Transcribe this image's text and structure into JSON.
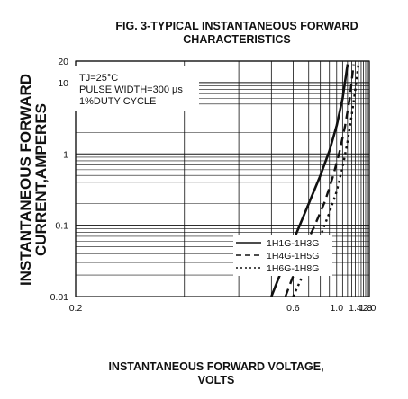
{
  "chart_data": {
    "type": "line",
    "title_lines": [
      "FIG. 3-TYPICAL INSTANTANEOUS FORWARD",
      "CHARACTERISTICS"
    ],
    "xlabel_lines": [
      "INSTANTANEOUS FORWARD VOLTAGE,",
      "VOLTS"
    ],
    "ylabel_lines": [
      "INSTANTANEOUS FORWARD",
      "CURRENT,AMPERES"
    ],
    "x_scale": "reciprocal",
    "y_scale": "log",
    "xlim": [
      0.2,
      2.0
    ],
    "ylim": [
      0.01,
      20
    ],
    "x_ticks": [
      0.2,
      0.6,
      1.0,
      1.4,
      1.8,
      2.0
    ],
    "x_tick_labels": [
      "0.2",
      "0.6",
      "1.0",
      "1.4",
      "1.8",
      "2.0"
    ],
    "y_ticks": [
      0.01,
      0.1,
      1,
      10,
      20
    ],
    "y_tick_labels": [
      "0.01",
      "0.1",
      "1",
      "10",
      "20"
    ],
    "grid": true,
    "annotations": [
      "TJ=25°C",
      "PULSE WIDTH=300 µs",
      "1%DUTY CYCLE"
    ],
    "legend_position": "bottom-right",
    "series": [
      {
        "name": "1H1G-1H3G",
        "style": "solid",
        "x": [
          0.5,
          0.6,
          0.7,
          0.8,
          0.9,
          1.0,
          1.1,
          1.2
        ],
        "y": [
          0.01,
          0.06,
          0.2,
          0.5,
          1.1,
          2.5,
          6,
          18
        ]
      },
      {
        "name": "1H4G-1H5G",
        "style": "dashed",
        "x": [
          0.56,
          0.65,
          0.75,
          0.85,
          0.95,
          1.05,
          1.15,
          1.25,
          1.35
        ],
        "y": [
          0.01,
          0.04,
          0.1,
          0.22,
          0.5,
          1.1,
          2.5,
          6,
          18
        ]
      },
      {
        "name": "1H6G-1H8G",
        "style": "dotted",
        "x": [
          0.6,
          0.7,
          0.8,
          0.9,
          1.0,
          1.1,
          1.2,
          1.3,
          1.4,
          1.5
        ],
        "y": [
          0.01,
          0.03,
          0.07,
          0.15,
          0.3,
          0.65,
          1.5,
          3.5,
          8,
          18
        ]
      }
    ]
  }
}
